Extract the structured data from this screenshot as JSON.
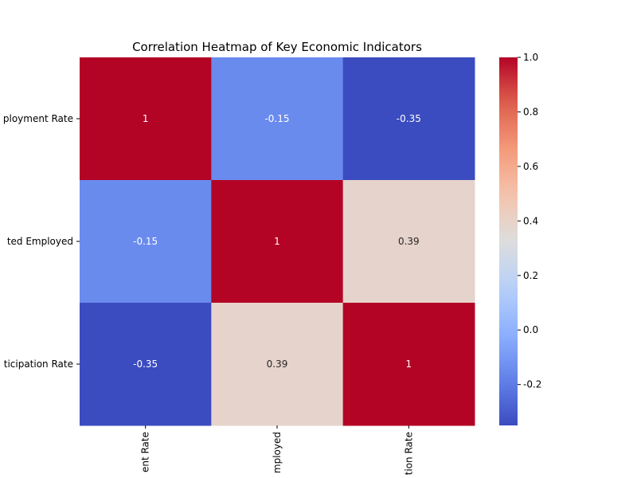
{
  "chart_data": {
    "type": "heatmap",
    "title": "Correlation Heatmap of Key Economic Indicators",
    "row_labels": [
      "ployment Rate",
      "ted Employed",
      "ticipation Rate"
    ],
    "col_labels": [
      "ent Rate",
      "mployed",
      "tion Rate"
    ],
    "values": [
      [
        1,
        -0.15,
        -0.35
      ],
      [
        -0.15,
        1,
        0.39
      ],
      [
        -0.35,
        0.39,
        1
      ]
    ],
    "cell_labels": [
      [
        "1",
        "-0.15",
        "-0.35"
      ],
      [
        "-0.15",
        "1",
        "0.39"
      ],
      [
        "-0.35",
        "0.39",
        "1"
      ]
    ],
    "colormap": "coolwarm",
    "colorbar": {
      "range": [
        -0.35,
        1.0
      ],
      "ticks": [
        1.0,
        0.8,
        0.6,
        0.4,
        0.2,
        0.0,
        -0.2
      ],
      "tick_labels": [
        "1.0",
        "0.8",
        "0.6",
        "0.4",
        "0.2",
        "0.0",
        "-0.2"
      ],
      "low_color": "#3b4cc0",
      "high_color": "#b40426"
    }
  }
}
